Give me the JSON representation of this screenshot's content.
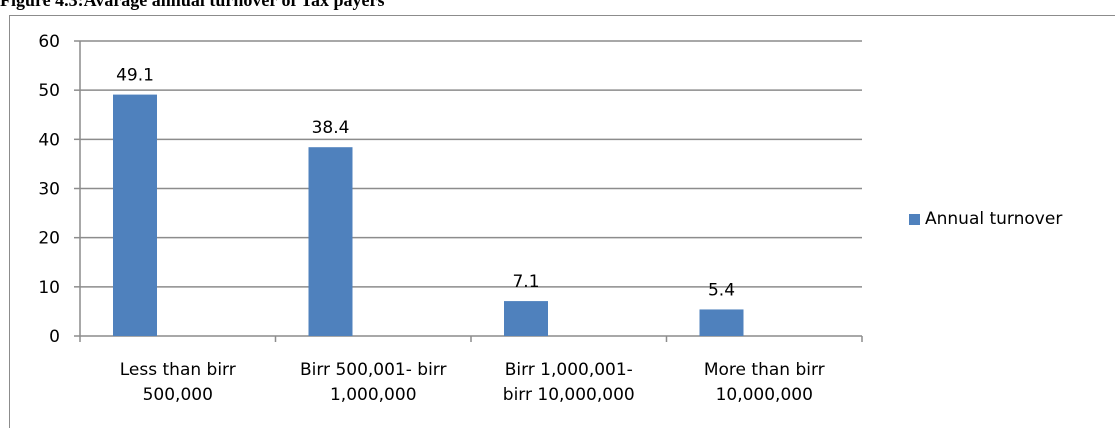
{
  "figure_title": "Figure 4.3:Avarage annual turnover of Tax payers",
  "colors": {
    "bar": "#4f81bd",
    "gridline": "#8c8c8c",
    "axis": "#8c8c8c"
  },
  "chart_data": {
    "type": "bar",
    "title": "",
    "xlabel": "",
    "ylabel": "",
    "ylim": [
      0,
      60
    ],
    "yticks": [
      0,
      10,
      20,
      30,
      40,
      50,
      60
    ],
    "grid": true,
    "legend_position": "right",
    "categories": [
      [
        "Less than birr",
        "500,000"
      ],
      [
        "Birr 500,001- birr",
        "1,000,000"
      ],
      [
        "Birr 1,000,001-",
        "birr 10,000,000"
      ],
      [
        "More than birr",
        "10,000,000"
      ]
    ],
    "series": [
      {
        "name": "Annual turnover",
        "values": [
          49.1,
          38.4,
          7.1,
          5.4
        ],
        "data_labels": [
          "49.1",
          "38.4",
          "7.1",
          "5.4"
        ]
      }
    ]
  }
}
